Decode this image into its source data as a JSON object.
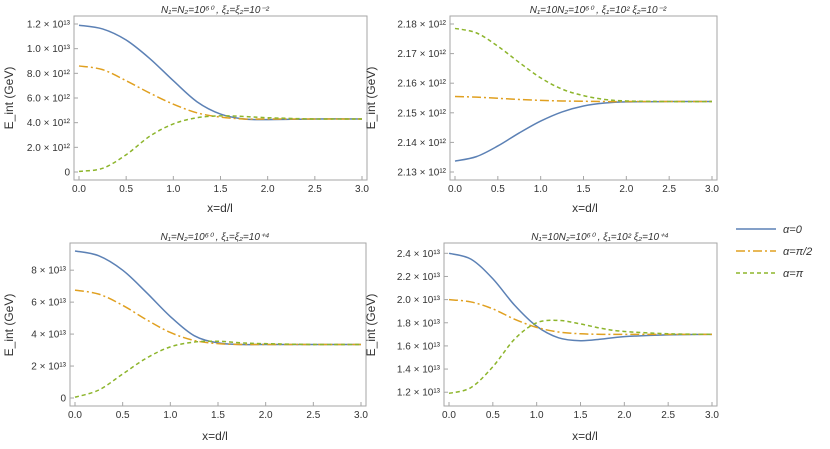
{
  "colors": {
    "alpha0": "#5c81b5",
    "alpha_half_pi": "#e0a020",
    "alpha_pi": "#8db52c"
  },
  "legend": [
    {
      "label": "α=0",
      "color": "#5c81b5",
      "dash": "solid"
    },
    {
      "label": "α=π/2",
      "color": "#e0a020",
      "dash": "dashdot"
    },
    {
      "label": "α=π",
      "color": "#8db52c",
      "dash": "dashed"
    }
  ],
  "chart_data": [
    {
      "type": "line",
      "title": "N₁=N₂=10⁶⁰ , ξ₁=ξ₂=10⁻²",
      "xlabel": "x=d/l",
      "ylabel": "E_int (GeV)",
      "xlim": [
        0,
        3
      ],
      "ylim": [
        0,
        12000000000000.0
      ],
      "xticks": [
        0,
        0.5,
        1,
        1.5,
        2,
        2.5,
        3
      ],
      "xtick_labels": [
        "0.0",
        "0.5",
        "1.0",
        "1.5",
        "2.0",
        "2.5",
        "3.0"
      ],
      "yticks": [
        0,
        2000000000000.0,
        4000000000000.0,
        6000000000000.0,
        8000000000000.0,
        10000000000000.0,
        12000000000000.0
      ],
      "ytick_labels": [
        "0",
        "2.0 × 10¹²",
        "4.0 × 10¹²",
        "6.0 × 10¹²",
        "8.0 × 10¹²",
        "1.0 × 10¹³",
        "1.2 × 10¹³"
      ],
      "x": [
        0,
        0.25,
        0.5,
        0.75,
        1.0,
        1.25,
        1.5,
        1.75,
        2.0,
        2.5,
        3.0
      ],
      "series": [
        {
          "name": "α=0",
          "values": [
            11900000000000.0,
            11600000000000.0,
            10700000000000.0,
            9200000000000.0,
            7400000000000.0,
            5700000000000.0,
            4700000000000.0,
            4300000000000.0,
            4250000000000.0,
            4300000000000.0,
            4300000000000.0
          ]
        },
        {
          "name": "α=π/2",
          "values": [
            8600000000000.0,
            8300000000000.0,
            7400000000000.0,
            6400000000000.0,
            5500000000000.0,
            4800000000000.0,
            4450000000000.0,
            4300000000000.0,
            4300000000000.0,
            4300000000000.0,
            4300000000000.0
          ]
        },
        {
          "name": "α=π",
          "values": [
            50000000000.0,
            300000000000.0,
            1400000000000.0,
            2900000000000.0,
            3900000000000.0,
            4400000000000.0,
            4550000000000.0,
            4500000000000.0,
            4400000000000.0,
            4300000000000.0,
            4300000000000.0
          ]
        }
      ]
    },
    {
      "type": "line",
      "title": "N₁=10N₂=10⁶⁰ , ξ₁=10² ξ₂=10⁻²",
      "xlabel": "x=d/l",
      "ylabel": "E_int (GeV)",
      "xlim": [
        0,
        3
      ],
      "ylim": [
        2130000000000.0,
        2180000000000.0
      ],
      "xticks": [
        0,
        0.5,
        1,
        1.5,
        2,
        2.5,
        3
      ],
      "xtick_labels": [
        "0.0",
        "0.5",
        "1.0",
        "1.5",
        "2.0",
        "2.5",
        "3.0"
      ],
      "yticks": [
        2130000000000.0,
        2140000000000.0,
        2150000000000.0,
        2160000000000.0,
        2170000000000.0,
        2180000000000.0
      ],
      "ytick_labels": [
        "2.13 × 10¹²",
        "2.14 × 10¹²",
        "2.15 × 10¹²",
        "2.16 × 10¹²",
        "2.17 × 10¹²",
        "2.18 × 10¹²"
      ],
      "x": [
        0,
        0.25,
        0.5,
        0.75,
        1.0,
        1.25,
        1.5,
        1.75,
        2.0,
        2.5,
        3.0
      ],
      "series": [
        {
          "name": "α=0",
          "values": [
            2133700000000.0,
            2135200000000.0,
            2138800000000.0,
            2143200000000.0,
            2147200000000.0,
            2150300000000.0,
            2152300000000.0,
            2153300000000.0,
            2153700000000.0,
            2153800000000.0,
            2153800000000.0
          ]
        },
        {
          "name": "α=π/2",
          "values": [
            2155500000000.0,
            2155300000000.0,
            2154900000000.0,
            2154500000000.0,
            2154200000000.0,
            2154000000000.0,
            2153900000000.0,
            2153800000000.0,
            2153800000000.0,
            2153800000000.0,
            2153800000000.0
          ]
        },
        {
          "name": "α=π",
          "values": [
            2178500000000.0,
            2177000000000.0,
            2172500000000.0,
            2167000000000.0,
            2161800000000.0,
            2158000000000.0,
            2155800000000.0,
            2154500000000.0,
            2154000000000.0,
            2153800000000.0,
            2153800000000.0
          ]
        }
      ]
    },
    {
      "type": "line",
      "title": "N₁=N₂=10⁶⁰ , ξ₁=ξ₂=10⁺⁴",
      "xlabel": "x=d/l",
      "ylabel": "E_int (GeV)",
      "xlim": [
        0,
        3
      ],
      "ylim": [
        0,
        92000000000000.0
      ],
      "xticks": [
        0,
        0.5,
        1,
        1.5,
        2,
        2.5,
        3
      ],
      "xtick_labels": [
        "0.0",
        "0.5",
        "1.0",
        "1.5",
        "2.0",
        "2.5",
        "3.0"
      ],
      "yticks": [
        0,
        20000000000000.0,
        40000000000000.0,
        60000000000000.0,
        80000000000000.0
      ],
      "ytick_labels": [
        "0",
        "2 × 10¹³",
        "4 × 10¹³",
        "6 × 10¹³",
        "8 × 10¹³"
      ],
      "x": [
        0,
        0.25,
        0.5,
        0.75,
        1.0,
        1.25,
        1.5,
        1.75,
        2.0,
        2.5,
        3.0
      ],
      "series": [
        {
          "name": "α=0",
          "values": [
            92000000000000.0,
            89000000000000.0,
            80000000000000.0,
            66000000000000.0,
            51000000000000.0,
            39000000000000.0,
            34500000000000.0,
            33500000000000.0,
            33500000000000.0,
            33500000000000.0,
            33500000000000.0
          ]
        },
        {
          "name": "α=π/2",
          "values": [
            67500000000000.0,
            65000000000000.0,
            58000000000000.0,
            49000000000000.0,
            41000000000000.0,
            36000000000000.0,
            34000000000000.0,
            33500000000000.0,
            33500000000000.0,
            33500000000000.0,
            33500000000000.0
          ]
        },
        {
          "name": "α=π",
          "values": [
            500000000000.0,
            5000000000000.0,
            15000000000000.0,
            25000000000000.0,
            32000000000000.0,
            35000000000000.0,
            35500000000000.0,
            34500000000000.0,
            34000000000000.0,
            33500000000000.0,
            33500000000000.0
          ]
        }
      ]
    },
    {
      "type": "line",
      "title": "N₁=10N₂=10⁶⁰ , ξ₁=10² ξ₂=10⁺⁴",
      "xlabel": "x=d/l",
      "ylabel": "E_int (GeV)",
      "xlim": [
        0,
        3
      ],
      "ylim": [
        11500000000000.0,
        24200000000000.0
      ],
      "xticks": [
        0,
        0.5,
        1,
        1.5,
        2,
        2.5,
        3
      ],
      "xtick_labels": [
        "0.0",
        "0.5",
        "1.0",
        "1.5",
        "2.0",
        "2.5",
        "3.0"
      ],
      "yticks": [
        12000000000000.0,
        14000000000000.0,
        16000000000000.0,
        18000000000000.0,
        20000000000000.0,
        22000000000000.0,
        24000000000000.0
      ],
      "ytick_labels": [
        "1.2 × 10¹³",
        "1.4 × 10¹³",
        "1.6 × 10¹³",
        "1.8 × 10¹³",
        "2.0 × 10¹³",
        "2.2 × 10¹³",
        "2.4 × 10¹³"
      ],
      "x": [
        0,
        0.25,
        0.5,
        0.75,
        1.0,
        1.25,
        1.5,
        1.75,
        2.0,
        2.5,
        3.0
      ],
      "series": [
        {
          "name": "α=0",
          "values": [
            24000000000000.0,
            23500000000000.0,
            21800000000000.0,
            19500000000000.0,
            17700000000000.0,
            16700000000000.0,
            16450000000000.0,
            16600000000000.0,
            16800000000000.0,
            16950000000000.0,
            17000000000000.0
          ]
        },
        {
          "name": "α=π/2",
          "values": [
            20000000000000.0,
            19800000000000.0,
            19200000000000.0,
            18300000000000.0,
            17600000000000.0,
            17200000000000.0,
            17050000000000.0,
            17000000000000.0,
            17000000000000.0,
            17000000000000.0,
            17000000000000.0
          ]
        },
        {
          "name": "α=π",
          "values": [
            11900000000000.0,
            12400000000000.0,
            14200000000000.0,
            16600000000000.0,
            18000000000000.0,
            18200000000000.0,
            17900000000000.0,
            17500000000000.0,
            17250000000000.0,
            17050000000000.0,
            17000000000000.0
          ]
        }
      ]
    }
  ]
}
